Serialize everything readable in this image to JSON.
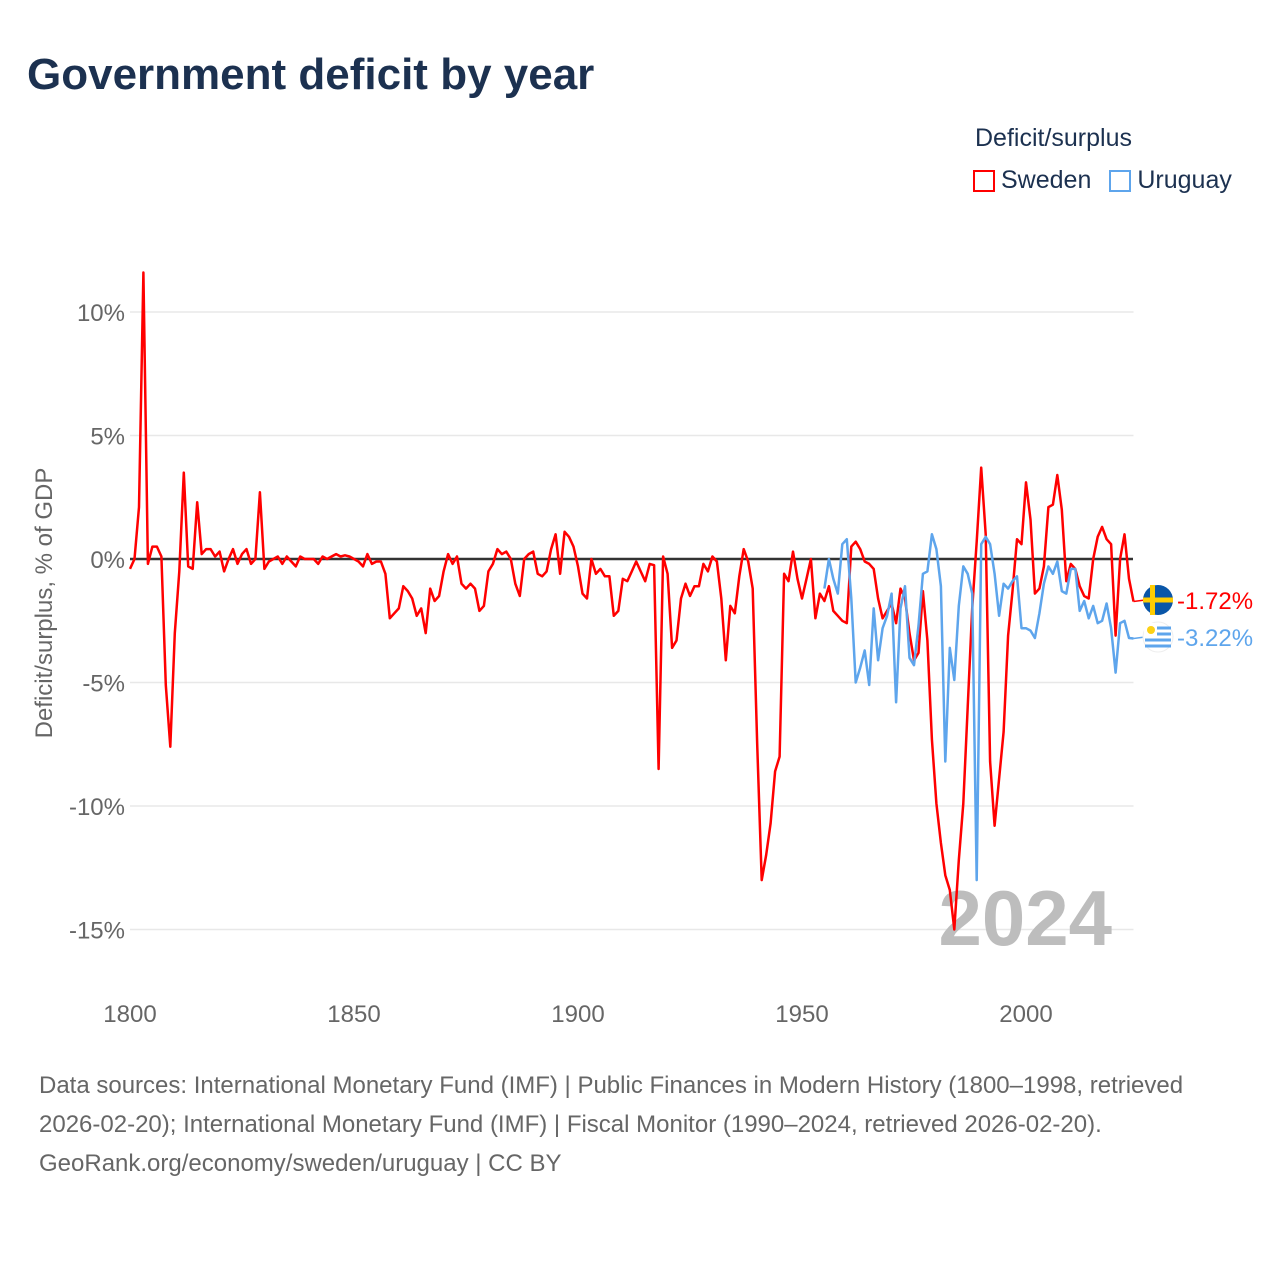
{
  "title": "Government deficit by year",
  "legend": {
    "title": "Deficit/surplus",
    "items": [
      {
        "label": "Sweden",
        "color": "#ff0000"
      },
      {
        "label": "Uruguay",
        "color": "#5ea5ec"
      }
    ]
  },
  "footer": {
    "sources": "Data sources: International Monetary Fund (IMF) | Public Finances in Modern History (1800–1998, retrieved 2026-02-20); International Monetary Fund (IMF) | Fiscal Monitor (1990–2024, retrieved 2026-02-20).",
    "credit": "GeoRank.org/economy/sweden/uruguay | CC BY"
  },
  "chart_data": {
    "type": "line",
    "title": "Government deficit by year",
    "xlabel": "",
    "ylabel": "Deficit/surplus, % of GDP",
    "xlim": [
      1800,
      2024
    ],
    "ylim": [
      -16.5,
      11.8
    ],
    "x_ticks": [
      1800,
      1850,
      1900,
      1950,
      2000
    ],
    "x_tick_labels": [
      "1800",
      "1850",
      "1900",
      "1950",
      "2000"
    ],
    "y_ticks": [
      10,
      5,
      0,
      -5,
      -10,
      -15
    ],
    "y_tick_labels": [
      "10%",
      "5%",
      "0%",
      "-5%",
      "-10%",
      "-15%"
    ],
    "grid": true,
    "legend_position": "top-right",
    "watermark_year": "2024",
    "series": [
      {
        "name": "Sweden",
        "color": "#ff0000",
        "end_label": "-1.72%",
        "start_year": 1800,
        "values": [
          -0.4,
          0,
          2.1,
          11.6,
          -0.2,
          0.5,
          0.5,
          0.1,
          -5.1,
          -7.6,
          -3,
          -0.5,
          3.5,
          -0.3,
          -0.4,
          2.3,
          0.2,
          0.4,
          0.4,
          0.1,
          0.3,
          -0.5,
          0,
          0.4,
          -0.2,
          0.2,
          0.4,
          -0.2,
          0,
          2.7,
          -0.4,
          -0.1,
          0,
          0.1,
          -0.2,
          0.1,
          -0.1,
          -0.3,
          0.1,
          0,
          0,
          0,
          -0.2,
          0.1,
          0,
          0.1,
          0.2,
          0.1,
          0.15,
          0.1,
          0,
          -0.1,
          -0.3,
          0.2,
          -0.2,
          -0.1,
          -0.1,
          -0.6,
          -2.4,
          -2.2,
          -2.0,
          -1.1,
          -1.3,
          -1.6,
          -2.3,
          -2.0,
          -3.0,
          -1.2,
          -1.7,
          -1.5,
          -0.5,
          0.2,
          -0.2,
          0.1,
          -1.0,
          -1.2,
          -1.0,
          -1.2,
          -2.1,
          -1.9,
          -0.5,
          -0.2,
          0.4,
          0.2,
          0.3,
          0,
          -1.0,
          -1.5,
          0,
          0.2,
          0.3,
          -0.6,
          -0.7,
          -0.5,
          0.4,
          1.0,
          -0.6,
          1.1,
          0.9,
          0.5,
          -0.3,
          -1.4,
          -1.6,
          0,
          -0.6,
          -0.4,
          -0.7,
          -0.7,
          -2.3,
          -2.1,
          -0.8,
          -0.9,
          -0.5,
          -0.1,
          -0.5,
          -0.9,
          -0.2,
          -0.25,
          -8.5,
          0.1,
          -0.6,
          -3.6,
          -3.3,
          -1.6,
          -1.0,
          -1.5,
          -1.1,
          -1.1,
          -0.2,
          -0.5,
          0.1,
          -0.1,
          -1.6,
          -4.1,
          -1.9,
          -2.2,
          -0.7,
          0.4,
          -0.1,
          -1.2,
          -7.5,
          -13.0,
          -12.0,
          -10.7,
          -8.6,
          -8.0,
          -0.6,
          -0.9,
          0.3,
          -0.8,
          -1.6,
          -0.8,
          0,
          -2.4,
          -1.4,
          -1.7,
          -1.1,
          -2.1,
          -2.3,
          -2.5,
          -2.6,
          0.5,
          0.7,
          0.4,
          -0.1,
          -0.2,
          -0.4,
          -1.6,
          -2.4,
          -2.1,
          -1.8,
          -2.6,
          -1.2,
          -1.6,
          -3.0,
          -4.1,
          -3.8,
          -1.3,
          -3.3,
          -7.3,
          -9.9,
          -11.5,
          -12.8,
          -13.4,
          -15.0,
          -12.2,
          -9.9,
          -6.0,
          -2.0,
          0.7,
          3.7,
          1.0,
          -8.2,
          -10.8,
          -8.9,
          -7.0,
          -3.1,
          -1.3,
          0.8,
          0.6,
          3.1,
          1.6,
          -1.4,
          -1.2,
          -0.3,
          2.1,
          2.2,
          3.4,
          2.0,
          -0.9,
          -0.2,
          -0.4,
          -1.1,
          -1.5,
          -1.6,
          0,
          0.9,
          1.3,
          0.8,
          0.6,
          -3.1,
          0,
          1.0,
          -0.8,
          -1.72
        ]
      },
      {
        "name": "Uruguay",
        "color": "#5ea5ec",
        "end_label": "-3.22%",
        "start_year": 1955,
        "values": [
          -1.2,
          0,
          -0.8,
          -1.4,
          0.6,
          0.8,
          -1.6,
          -5.0,
          -4.4,
          -3.7,
          -5.1,
          -2.0,
          -4.1,
          -2.8,
          -2.3,
          -1.4,
          -5.8,
          -2.0,
          -1.1,
          -4.0,
          -4.3,
          -2.7,
          -0.6,
          -0.5,
          1.0,
          0.4,
          -1.1,
          -8.2,
          -3.6,
          -4.9,
          -1.9,
          -0.3,
          -0.6,
          -1.4,
          -13.0,
          0.6,
          0.9,
          0.6,
          -0.6,
          -2.3,
          -1.0,
          -1.2,
          -0.9,
          -0.7,
          -2.8,
          -2.8,
          -2.9,
          -3.2,
          -2.2,
          -1.0,
          -0.3,
          -0.6,
          -0.1,
          -1.3,
          -1.4,
          -0.4,
          -0.4,
          -2.1,
          -1.7,
          -2.4,
          -1.9,
          -2.6,
          -2.5,
          -1.8,
          -2.8,
          -4.6,
          -2.6,
          -2.5,
          -3.2,
          -3.22
        ]
      }
    ]
  }
}
